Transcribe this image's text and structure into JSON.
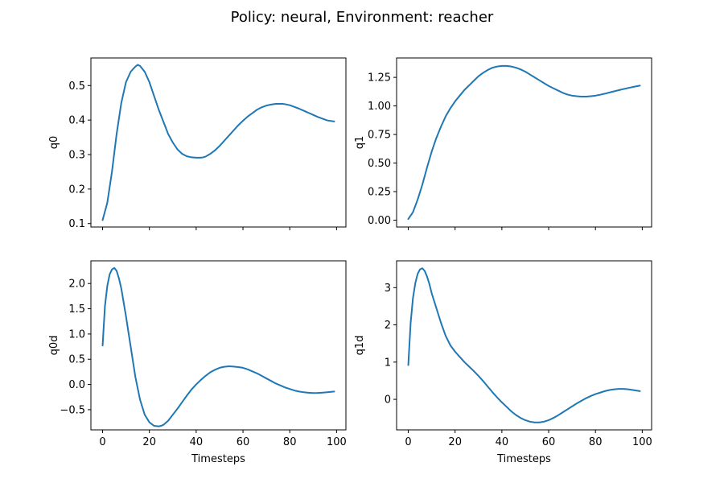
{
  "chart_data": {
    "title": "Policy: neural, Environment: reacher",
    "type": "line",
    "line_color": "#1f77b4",
    "grid": false,
    "legend": false,
    "subplots": [
      {
        "type": "line",
        "ylabel": "q0",
        "xlabel": "",
        "xlim": [
          -5,
          104
        ],
        "ylim": [
          0.09,
          0.58
        ],
        "xticks": [
          0,
          20,
          40,
          60,
          80,
          100
        ],
        "xtick_labels_visible": false,
        "yticks": [
          0.1,
          0.2,
          0.3,
          0.4,
          0.5
        ],
        "ytick_labels": [
          "0.1",
          "0.2",
          "0.3",
          "0.4",
          "0.5"
        ],
        "x": [
          0,
          2,
          4,
          6,
          8,
          10,
          12,
          14,
          15,
          16,
          18,
          20,
          22,
          24,
          26,
          28,
          30,
          32,
          34,
          36,
          38,
          40,
          42,
          43,
          44,
          46,
          48,
          50,
          52,
          54,
          56,
          58,
          60,
          62,
          64,
          66,
          68,
          70,
          72,
          74,
          76,
          77,
          78,
          80,
          82,
          84,
          86,
          88,
          90,
          92,
          94,
          96,
          99
        ],
        "y": [
          0.11,
          0.16,
          0.25,
          0.36,
          0.45,
          0.51,
          0.54,
          0.555,
          0.56,
          0.557,
          0.54,
          0.51,
          0.47,
          0.43,
          0.395,
          0.36,
          0.335,
          0.315,
          0.302,
          0.295,
          0.292,
          0.291,
          0.291,
          0.292,
          0.294,
          0.302,
          0.312,
          0.325,
          0.34,
          0.355,
          0.37,
          0.385,
          0.398,
          0.41,
          0.42,
          0.43,
          0.437,
          0.442,
          0.445,
          0.447,
          0.447,
          0.447,
          0.446,
          0.443,
          0.438,
          0.433,
          0.427,
          0.421,
          0.415,
          0.409,
          0.404,
          0.399,
          0.396
        ]
      },
      {
        "type": "line",
        "ylabel": "q1",
        "xlabel": "",
        "xlim": [
          -5,
          104
        ],
        "ylim": [
          -0.06,
          1.42
        ],
        "xticks": [
          0,
          20,
          40,
          60,
          80,
          100
        ],
        "xtick_labels_visible": false,
        "yticks": [
          0.0,
          0.25,
          0.5,
          0.75,
          1.0,
          1.25
        ],
        "ytick_labels": [
          "0.00",
          "0.25",
          "0.50",
          "0.75",
          "1.00",
          "1.25"
        ],
        "x": [
          0,
          2,
          4,
          6,
          8,
          10,
          12,
          14,
          16,
          18,
          20,
          22,
          24,
          26,
          28,
          30,
          32,
          34,
          36,
          38,
          40,
          42,
          44,
          46,
          48,
          50,
          52,
          54,
          56,
          58,
          60,
          62,
          64,
          66,
          68,
          70,
          72,
          74,
          76,
          78,
          80,
          82,
          84,
          86,
          88,
          90,
          92,
          94,
          96,
          99
        ],
        "y": [
          0.01,
          0.07,
          0.18,
          0.31,
          0.46,
          0.6,
          0.72,
          0.82,
          0.91,
          0.98,
          1.04,
          1.09,
          1.14,
          1.18,
          1.22,
          1.26,
          1.29,
          1.315,
          1.335,
          1.345,
          1.35,
          1.35,
          1.345,
          1.335,
          1.32,
          1.3,
          1.275,
          1.25,
          1.225,
          1.2,
          1.175,
          1.155,
          1.135,
          1.115,
          1.1,
          1.09,
          1.085,
          1.082,
          1.082,
          1.085,
          1.09,
          1.098,
          1.107,
          1.118,
          1.128,
          1.138,
          1.148,
          1.157,
          1.166,
          1.178
        ]
      },
      {
        "type": "line",
        "ylabel": "q0d",
        "xlabel": "Timesteps",
        "xlim": [
          -5,
          104
        ],
        "ylim": [
          -0.9,
          2.45
        ],
        "xticks": [
          0,
          20,
          40,
          60,
          80,
          100
        ],
        "xtick_labels_visible": true,
        "xtick_labels": [
          "0",
          "20",
          "40",
          "60",
          "80",
          "100"
        ],
        "yticks": [
          -0.5,
          0.0,
          0.5,
          1.0,
          1.5,
          2.0
        ],
        "ytick_labels": [
          "−0.5",
          "0.0",
          "0.5",
          "1.0",
          "1.5",
          "2.0"
        ],
        "x": [
          0,
          1,
          2,
          3,
          4,
          5,
          6,
          7,
          8,
          10,
          12,
          14,
          16,
          18,
          20,
          22,
          24,
          25,
          26,
          28,
          30,
          32,
          34,
          36,
          38,
          40,
          42,
          44,
          46,
          48,
          50,
          52,
          54,
          56,
          58,
          60,
          62,
          64,
          66,
          68,
          70,
          72,
          74,
          76,
          78,
          80,
          82,
          84,
          86,
          88,
          90,
          92,
          94,
          96,
          99
        ],
        "y": [
          0.77,
          1.55,
          1.95,
          2.18,
          2.28,
          2.31,
          2.25,
          2.1,
          1.9,
          1.35,
          0.75,
          0.15,
          -0.3,
          -0.6,
          -0.75,
          -0.82,
          -0.83,
          -0.82,
          -0.8,
          -0.72,
          -0.6,
          -0.48,
          -0.35,
          -0.22,
          -0.1,
          0.0,
          0.09,
          0.17,
          0.24,
          0.29,
          0.33,
          0.35,
          0.36,
          0.355,
          0.345,
          0.33,
          0.3,
          0.26,
          0.22,
          0.17,
          0.12,
          0.07,
          0.02,
          -0.02,
          -0.06,
          -0.09,
          -0.12,
          -0.14,
          -0.155,
          -0.165,
          -0.17,
          -0.168,
          -0.162,
          -0.155,
          -0.14
        ]
      },
      {
        "type": "line",
        "ylabel": "q1d",
        "xlabel": "Timesteps",
        "xlim": [
          -5,
          104
        ],
        "ylim": [
          -0.82,
          3.72
        ],
        "xticks": [
          0,
          20,
          40,
          60,
          80,
          100
        ],
        "xtick_labels_visible": true,
        "xtick_labels": [
          "0",
          "20",
          "40",
          "60",
          "80",
          "100"
        ],
        "yticks": [
          0,
          1,
          2,
          3
        ],
        "ytick_labels": [
          "0",
          "1",
          "2",
          "3"
        ],
        "x": [
          0,
          1,
          2,
          3,
          4,
          5,
          6,
          7,
          8,
          9,
          10,
          12,
          14,
          16,
          18,
          20,
          22,
          24,
          26,
          28,
          30,
          32,
          34,
          36,
          38,
          40,
          42,
          44,
          46,
          48,
          50,
          52,
          54,
          56,
          58,
          60,
          62,
          64,
          66,
          68,
          70,
          72,
          74,
          76,
          78,
          80,
          82,
          84,
          86,
          88,
          90,
          92,
          94,
          96,
          99
        ],
        "y": [
          0.92,
          2.05,
          2.72,
          3.12,
          3.37,
          3.49,
          3.52,
          3.45,
          3.3,
          3.1,
          2.85,
          2.45,
          2.05,
          1.7,
          1.45,
          1.28,
          1.14,
          1.0,
          0.88,
          0.76,
          0.63,
          0.49,
          0.34,
          0.19,
          0.05,
          -0.08,
          -0.2,
          -0.32,
          -0.42,
          -0.5,
          -0.56,
          -0.6,
          -0.62,
          -0.62,
          -0.6,
          -0.56,
          -0.5,
          -0.43,
          -0.35,
          -0.27,
          -0.19,
          -0.11,
          -0.04,
          0.03,
          0.09,
          0.14,
          0.18,
          0.22,
          0.25,
          0.27,
          0.28,
          0.28,
          0.27,
          0.25,
          0.22
        ]
      }
    ]
  }
}
